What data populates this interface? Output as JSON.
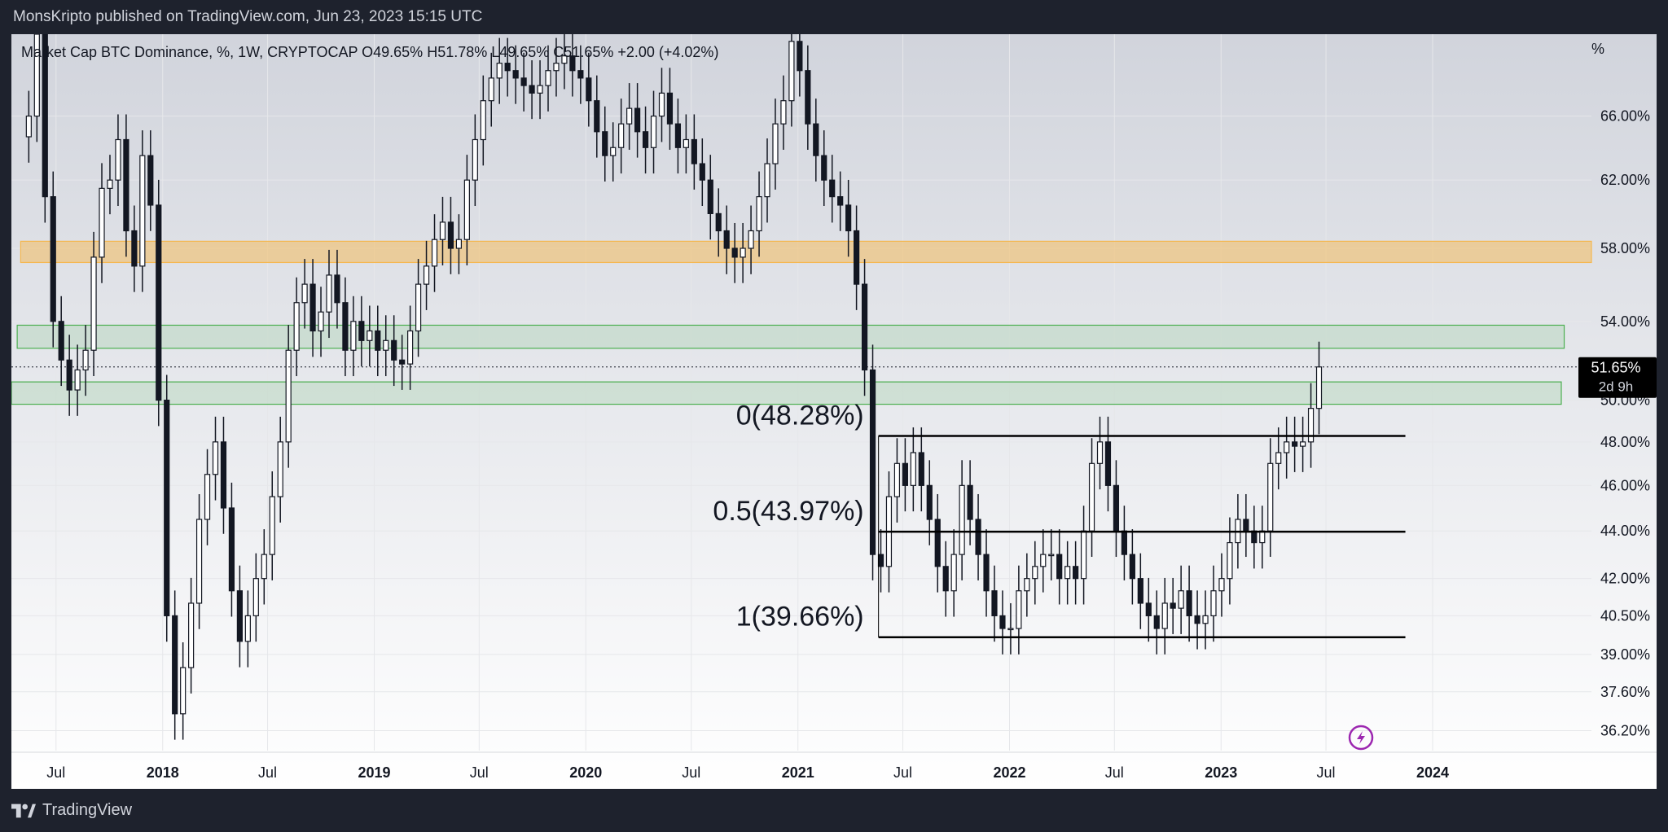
{
  "header": {
    "publish_line": "MonsKripto published on TradingView.com, Jun 23, 2023 15:15 UTC"
  },
  "footer": {
    "brand": "TradingView"
  },
  "legend": {
    "text": "Market Cap BTC Dominance, %, 1W, CRYPTOCAP  O49.65%  H51.78%  L49.65%  C51.65%  +2.00 (+4.02%)"
  },
  "price_scale": {
    "unit": "%",
    "current_value": "51.65%",
    "countdown": "2d 9h"
  },
  "colors": {
    "background_top": "#d1d4dc",
    "background_bottom": "#ffffff",
    "candle": "#131722",
    "orange_zone": "#f5b74f",
    "green_zone": "#4caf50",
    "badge": "#000000"
  },
  "chart_data": {
    "type": "candlestick",
    "title": "Market Cap BTC Dominance, %, 1W, CRYPTOCAP",
    "y_scale": "log",
    "ylim": [
      35.5,
      71.5
    ],
    "xlim": [
      "2017-04-15",
      "2024-10-01"
    ],
    "y_ticks": [
      "36.20%",
      "37.60%",
      "39.00%",
      "40.50%",
      "42.00%",
      "44.00%",
      "46.00%",
      "48.00%",
      "50.00%",
      "54.00%",
      "58.00%",
      "62.00%",
      "66.00%"
    ],
    "y_tick_values": [
      36.2,
      37.6,
      39.0,
      40.5,
      42.0,
      44.0,
      46.0,
      48.0,
      50.0,
      54.0,
      58.0,
      62.0,
      66.0
    ],
    "x_ticks": [
      {
        "label": "Jul",
        "date": "2017-07-01",
        "bold": false
      },
      {
        "label": "2018",
        "date": "2018-01-01",
        "bold": true
      },
      {
        "label": "Jul",
        "date": "2018-07-01",
        "bold": false
      },
      {
        "label": "2019",
        "date": "2019-01-01",
        "bold": true
      },
      {
        "label": "Jul",
        "date": "2019-07-01",
        "bold": false
      },
      {
        "label": "2020",
        "date": "2020-01-01",
        "bold": true
      },
      {
        "label": "Jul",
        "date": "2020-07-01",
        "bold": false
      },
      {
        "label": "2021",
        "date": "2021-01-01",
        "bold": true
      },
      {
        "label": "Jul",
        "date": "2021-07-01",
        "bold": false
      },
      {
        "label": "2022",
        "date": "2022-01-01",
        "bold": true
      },
      {
        "label": "Jul",
        "date": "2022-07-01",
        "bold": false
      },
      {
        "label": "2023",
        "date": "2023-01-01",
        "bold": true
      },
      {
        "label": "Jul",
        "date": "2023-07-01",
        "bold": false
      },
      {
        "label": "2024",
        "date": "2024-01-01",
        "bold": true
      }
    ],
    "series": [
      {
        "name": "BTC Dominance weekly close",
        "points": [
          [
            "2017-05-15",
            66.0
          ],
          [
            "2017-05-29",
            71.5
          ],
          [
            "2017-06-12",
            61.0
          ],
          [
            "2017-06-26",
            54.0
          ],
          [
            "2017-07-10",
            52.0
          ],
          [
            "2017-07-24",
            50.5
          ],
          [
            "2017-08-07",
            51.5
          ],
          [
            "2017-08-21",
            52.5
          ],
          [
            "2017-09-04",
            57.5
          ],
          [
            "2017-09-18",
            61.5
          ],
          [
            "2017-10-02",
            62.0
          ],
          [
            "2017-10-16",
            64.5
          ],
          [
            "2017-10-30",
            59.0
          ],
          [
            "2017-11-13",
            57.0
          ],
          [
            "2017-11-27",
            63.5
          ],
          [
            "2017-12-11",
            60.5
          ],
          [
            "2017-12-25",
            50.0
          ],
          [
            "2018-01-08",
            40.5
          ],
          [
            "2018-01-22",
            36.8
          ],
          [
            "2018-02-05",
            38.5
          ],
          [
            "2018-02-19",
            41.0
          ],
          [
            "2018-03-05",
            44.5
          ],
          [
            "2018-03-19",
            46.5
          ],
          [
            "2018-04-02",
            48.0
          ],
          [
            "2018-04-16",
            45.0
          ],
          [
            "2018-04-30",
            41.5
          ],
          [
            "2018-05-14",
            39.5
          ],
          [
            "2018-05-28",
            40.5
          ],
          [
            "2018-06-11",
            42.0
          ],
          [
            "2018-06-25",
            43.0
          ],
          [
            "2018-07-09",
            45.5
          ],
          [
            "2018-07-23",
            48.0
          ],
          [
            "2018-08-06",
            52.5
          ],
          [
            "2018-08-20",
            55.0
          ],
          [
            "2018-09-03",
            56.0
          ],
          [
            "2018-09-17",
            53.5
          ],
          [
            "2018-10-01",
            54.5
          ],
          [
            "2018-10-15",
            56.5
          ],
          [
            "2018-10-29",
            55.0
          ],
          [
            "2018-11-12",
            52.5
          ],
          [
            "2018-11-26",
            54.0
          ],
          [
            "2018-12-10",
            53.0
          ],
          [
            "2018-12-24",
            53.5
          ],
          [
            "2019-01-07",
            52.5
          ],
          [
            "2019-01-21",
            53.0
          ],
          [
            "2019-02-04",
            52.0
          ],
          [
            "2019-02-18",
            51.8
          ],
          [
            "2019-03-04",
            53.5
          ],
          [
            "2019-03-18",
            56.0
          ],
          [
            "2019-04-01",
            57.0
          ],
          [
            "2019-04-15",
            58.5
          ],
          [
            "2019-04-29",
            59.5
          ],
          [
            "2019-05-13",
            58.0
          ],
          [
            "2019-05-27",
            58.5
          ],
          [
            "2019-06-10",
            62.0
          ],
          [
            "2019-06-24",
            64.5
          ],
          [
            "2019-07-08",
            67.0
          ],
          [
            "2019-07-22",
            68.5
          ],
          [
            "2019-08-05",
            69.5
          ],
          [
            "2019-08-19",
            69.0
          ],
          [
            "2019-09-02",
            68.5
          ],
          [
            "2019-09-16",
            68.0
          ],
          [
            "2019-09-30",
            67.5
          ],
          [
            "2019-10-14",
            68.0
          ],
          [
            "2019-10-28",
            69.0
          ],
          [
            "2019-11-11",
            69.5
          ],
          [
            "2019-11-25",
            70.0
          ],
          [
            "2019-12-09",
            69.0
          ],
          [
            "2019-12-23",
            68.5
          ],
          [
            "2020-01-06",
            67.0
          ],
          [
            "2020-01-20",
            65.0
          ],
          [
            "2020-02-03",
            63.5
          ],
          [
            "2020-02-17",
            64.0
          ],
          [
            "2020-03-02",
            65.5
          ],
          [
            "2020-03-16",
            66.5
          ],
          [
            "2020-03-30",
            65.0
          ],
          [
            "2020-04-13",
            64.0
          ],
          [
            "2020-04-27",
            66.0
          ],
          [
            "2020-05-11",
            67.5
          ],
          [
            "2020-05-25",
            65.5
          ],
          [
            "2020-06-08",
            64.0
          ],
          [
            "2020-06-22",
            64.5
          ],
          [
            "2020-07-06",
            63.0
          ],
          [
            "2020-07-20",
            62.0
          ],
          [
            "2020-08-03",
            60.0
          ],
          [
            "2020-08-17",
            59.0
          ],
          [
            "2020-08-31",
            58.0
          ],
          [
            "2020-09-14",
            57.5
          ],
          [
            "2020-09-28",
            58.0
          ],
          [
            "2020-10-12",
            59.0
          ],
          [
            "2020-10-26",
            61.0
          ],
          [
            "2020-11-09",
            63.0
          ],
          [
            "2020-11-23",
            65.5
          ],
          [
            "2020-12-07",
            67.0
          ],
          [
            "2020-12-21",
            71.0
          ],
          [
            "2021-01-04",
            69.0
          ],
          [
            "2021-01-18",
            65.5
          ],
          [
            "2021-02-01",
            63.5
          ],
          [
            "2021-02-15",
            62.0
          ],
          [
            "2021-03-01",
            61.0
          ],
          [
            "2021-03-15",
            60.5
          ],
          [
            "2021-03-29",
            59.0
          ],
          [
            "2021-04-12",
            56.0
          ],
          [
            "2021-04-26",
            51.5
          ],
          [
            "2021-05-10",
            43.0
          ],
          [
            "2021-05-24",
            42.5
          ],
          [
            "2021-06-07",
            45.5
          ],
          [
            "2021-06-21",
            47.0
          ],
          [
            "2021-07-05",
            46.0
          ],
          [
            "2021-07-19",
            47.5
          ],
          [
            "2021-08-02",
            46.0
          ],
          [
            "2021-08-16",
            44.5
          ],
          [
            "2021-08-30",
            42.5
          ],
          [
            "2021-09-13",
            41.5
          ],
          [
            "2021-09-27",
            43.0
          ],
          [
            "2021-10-11",
            46.0
          ],
          [
            "2021-10-25",
            44.5
          ],
          [
            "2021-11-08",
            43.0
          ],
          [
            "2021-11-22",
            41.5
          ],
          [
            "2021-12-06",
            40.5
          ],
          [
            "2021-12-20",
            40.0
          ],
          [
            "2022-01-03",
            40.0
          ],
          [
            "2022-01-17",
            41.5
          ],
          [
            "2022-01-31",
            42.0
          ],
          [
            "2022-02-14",
            42.5
          ],
          [
            "2022-02-28",
            43.0
          ],
          [
            "2022-03-14",
            43.0
          ],
          [
            "2022-03-28",
            42.0
          ],
          [
            "2022-04-11",
            42.5
          ],
          [
            "2022-04-25",
            42.0
          ],
          [
            "2022-05-09",
            44.0
          ],
          [
            "2022-05-23",
            47.0
          ],
          [
            "2022-06-06",
            48.0
          ],
          [
            "2022-06-20",
            46.0
          ],
          [
            "2022-07-04",
            44.0
          ],
          [
            "2022-07-18",
            43.0
          ],
          [
            "2022-08-01",
            42.0
          ],
          [
            "2022-08-15",
            41.0
          ],
          [
            "2022-08-29",
            40.5
          ],
          [
            "2022-09-12",
            40.0
          ],
          [
            "2022-09-26",
            41.0
          ],
          [
            "2022-10-10",
            40.8
          ],
          [
            "2022-10-24",
            41.5
          ],
          [
            "2022-11-07",
            40.5
          ],
          [
            "2022-11-21",
            40.2
          ],
          [
            "2022-12-05",
            40.5
          ],
          [
            "2022-12-19",
            41.5
          ],
          [
            "2023-01-02",
            42.0
          ],
          [
            "2023-01-16",
            43.5
          ],
          [
            "2023-01-30",
            44.5
          ],
          [
            "2023-02-13",
            44.0
          ],
          [
            "2023-02-27",
            43.5
          ],
          [
            "2023-03-13",
            44.0
          ],
          [
            "2023-03-27",
            47.0
          ],
          [
            "2023-04-10",
            47.5
          ],
          [
            "2023-04-24",
            48.0
          ],
          [
            "2023-05-08",
            47.8
          ],
          [
            "2023-05-22",
            48.0
          ],
          [
            "2023-06-05",
            49.6
          ],
          [
            "2023-06-19",
            51.65
          ]
        ]
      }
    ],
    "zones": [
      {
        "name": "orange zone",
        "color": "#f5b74f",
        "low": 57.2,
        "high": 58.4,
        "from": "2017-05-01",
        "to": "2024-10-01"
      },
      {
        "name": "green zone upper",
        "color": "#4caf50",
        "low": 52.6,
        "high": 53.8,
        "from": "2017-04-25",
        "to": "2024-08-15"
      },
      {
        "name": "green zone lower",
        "color": "#4caf50",
        "low": 49.8,
        "high": 50.9,
        "from": "2017-04-15",
        "to": "2024-08-10"
      }
    ],
    "fib_levels": [
      {
        "label": "0(48.28%)",
        "value": 48.28
      },
      {
        "label": "0.5(43.97%)",
        "value": 43.97
      },
      {
        "label": "1(39.66%)",
        "value": 39.66
      }
    ],
    "fib_range": {
      "from": "2021-05-20",
      "to": "2023-11-15"
    },
    "current_price_line": 51.65
  }
}
